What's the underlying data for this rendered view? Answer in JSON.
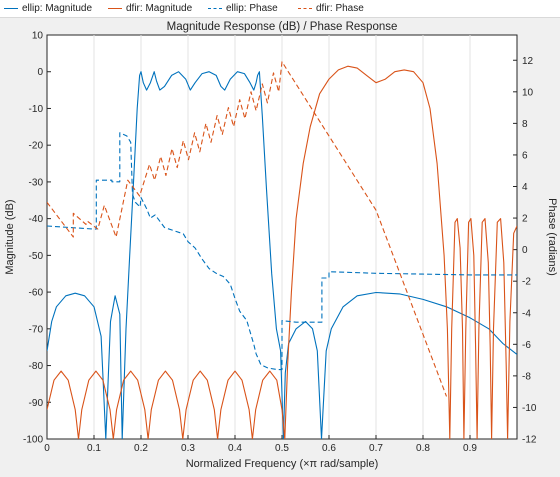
{
  "legend": [
    {
      "label": "ellip: Magnitude",
      "color": "#0072BD",
      "style": "solid"
    },
    {
      "label": "dfir: Magnitude",
      "color": "#D95319",
      "style": "solid"
    },
    {
      "label": "ellip: Phase",
      "color": "#0072BD",
      "style": "dashed"
    },
    {
      "label": "dfir: Phase",
      "color": "#D95319",
      "style": "dashed"
    }
  ],
  "chart_data": {
    "type": "line",
    "title": "Magnitude Response (dB) / Phase Response",
    "xlabel": "Normalized Frequency (×π rad/sample)",
    "ylabel_left": "Magnitude (dB)",
    "ylabel_right": "Phase (radians)",
    "xlim": [
      0,
      1
    ],
    "ylim_left": [
      -100,
      10
    ],
    "ylim_right": [
      -12,
      13.6
    ],
    "x_ticks": [
      "0",
      "0.1",
      "0.2",
      "0.3",
      "0.4",
      "0.5",
      "0.6",
      "0.7",
      "0.8",
      "0.9"
    ],
    "x_tick_values": [
      0,
      0.1,
      0.2,
      0.3,
      0.4,
      0.5,
      0.6,
      0.7,
      0.8,
      0.9
    ],
    "y_left_ticks": [
      "10",
      "0",
      "-10",
      "-20",
      "-30",
      "-40",
      "-50",
      "-60",
      "-70",
      "-80",
      "-90",
      "-100"
    ],
    "y_left_tick_values": [
      10,
      0,
      -10,
      -20,
      -30,
      -40,
      -50,
      -60,
      -70,
      -80,
      -90,
      -100
    ],
    "y_right_ticks": [
      "12",
      "10",
      "8",
      "6",
      "4",
      "2",
      "0",
      "-2",
      "-4",
      "-6",
      "-8",
      "-10",
      "-12"
    ],
    "y_right_tick_values": [
      12,
      10,
      8,
      6,
      4,
      2,
      0,
      -2,
      -4,
      -6,
      -8,
      -10,
      -12
    ],
    "grid": "vertical",
    "legend_position": "top",
    "series": [
      {
        "axis": "left",
        "color": "#0072BD",
        "style": "solid",
        "points": [
          [
            0,
            -76
          ],
          [
            0.01,
            -68
          ],
          [
            0.02,
            -64
          ],
          [
            0.04,
            -61
          ],
          [
            0.06,
            -60.3
          ],
          [
            0.08,
            -61
          ],
          [
            0.1,
            -64
          ],
          [
            0.115,
            -72
          ],
          [
            0.125,
            -100
          ],
          [
            0.135,
            -68
          ],
          [
            0.145,
            -61
          ],
          [
            0.155,
            -66
          ],
          [
            0.16,
            -100
          ],
          [
            0.168,
            -70
          ],
          [
            0.176,
            -50
          ],
          [
            0.185,
            -28
          ],
          [
            0.192,
            -10
          ],
          [
            0.197,
            -1
          ],
          [
            0.2,
            0
          ],
          [
            0.205,
            -3
          ],
          [
            0.212,
            -5
          ],
          [
            0.22,
            -3
          ],
          [
            0.228,
            0
          ],
          [
            0.233,
            -2.5
          ],
          [
            0.24,
            -5
          ],
          [
            0.25,
            -4
          ],
          [
            0.265,
            -1
          ],
          [
            0.28,
            0
          ],
          [
            0.295,
            -2
          ],
          [
            0.305,
            -5
          ],
          [
            0.315,
            -3
          ],
          [
            0.33,
            -0.5
          ],
          [
            0.345,
            0
          ],
          [
            0.36,
            -1
          ],
          [
            0.37,
            -4
          ],
          [
            0.378,
            -5
          ],
          [
            0.39,
            -2
          ],
          [
            0.405,
            0
          ],
          [
            0.42,
            -0.5
          ],
          [
            0.432,
            -3
          ],
          [
            0.44,
            -5
          ],
          [
            0.445,
            -3
          ],
          [
            0.448,
            -1
          ],
          [
            0.452,
            0
          ],
          [
            0.458,
            -12
          ],
          [
            0.467,
            -32
          ],
          [
            0.478,
            -55
          ],
          [
            0.488,
            -70
          ],
          [
            0.497,
            -76
          ],
          [
            0.503,
            -100
          ],
          [
            0.507,
            -82
          ],
          [
            0.514,
            -74
          ],
          [
            0.53,
            -70
          ],
          [
            0.55,
            -68
          ],
          [
            0.565,
            -70
          ],
          [
            0.575,
            -76
          ],
          [
            0.584,
            -100
          ],
          [
            0.594,
            -76
          ],
          [
            0.605,
            -70
          ],
          [
            0.63,
            -64
          ],
          [
            0.66,
            -61
          ],
          [
            0.7,
            -60.1
          ],
          [
            0.75,
            -60.5
          ],
          [
            0.8,
            -62
          ],
          [
            0.85,
            -64
          ],
          [
            0.9,
            -67
          ],
          [
            0.94,
            -70
          ],
          [
            0.97,
            -74
          ],
          [
            1.0,
            -77
          ]
        ]
      },
      {
        "axis": "left",
        "color": "#D95319",
        "style": "solid",
        "points": [
          [
            0,
            -92
          ],
          [
            0.015,
            -84
          ],
          [
            0.03,
            -81.5
          ],
          [
            0.045,
            -84
          ],
          [
            0.06,
            -92
          ],
          [
            0.067,
            -100
          ],
          [
            0.074,
            -92
          ],
          [
            0.089,
            -84
          ],
          [
            0.104,
            -81.5
          ],
          [
            0.119,
            -84
          ],
          [
            0.134,
            -92
          ],
          [
            0.141,
            -100
          ],
          [
            0.148,
            -92
          ],
          [
            0.163,
            -84
          ],
          [
            0.178,
            -81.5
          ],
          [
            0.193,
            -84
          ],
          [
            0.208,
            -92
          ],
          [
            0.215,
            -100
          ],
          [
            0.222,
            -92
          ],
          [
            0.237,
            -84
          ],
          [
            0.252,
            -81.5
          ],
          [
            0.267,
            -84
          ],
          [
            0.282,
            -92
          ],
          [
            0.289,
            -100
          ],
          [
            0.296,
            -92
          ],
          [
            0.311,
            -84
          ],
          [
            0.326,
            -81.5
          ],
          [
            0.341,
            -84
          ],
          [
            0.356,
            -92
          ],
          [
            0.363,
            -100
          ],
          [
            0.37,
            -92
          ],
          [
            0.385,
            -84
          ],
          [
            0.4,
            -81.5
          ],
          [
            0.415,
            -84
          ],
          [
            0.43,
            -92
          ],
          [
            0.437,
            -100
          ],
          [
            0.444,
            -92
          ],
          [
            0.459,
            -84
          ],
          [
            0.474,
            -81.5
          ],
          [
            0.489,
            -84
          ],
          [
            0.5,
            -92
          ],
          [
            0.506,
            -100
          ],
          [
            0.512,
            -80
          ],
          [
            0.52,
            -60
          ],
          [
            0.53,
            -40
          ],
          [
            0.545,
            -25
          ],
          [
            0.56,
            -15
          ],
          [
            0.58,
            -6
          ],
          [
            0.6,
            -2
          ],
          [
            0.62,
            0.5
          ],
          [
            0.64,
            1.5
          ],
          [
            0.66,
            1
          ],
          [
            0.68,
            -1
          ],
          [
            0.7,
            -3
          ],
          [
            0.72,
            -2
          ],
          [
            0.74,
            0
          ],
          [
            0.76,
            0.5
          ],
          [
            0.78,
            0
          ],
          [
            0.8,
            -3
          ],
          [
            0.815,
            -10
          ],
          [
            0.83,
            -25
          ],
          [
            0.845,
            -50
          ],
          [
            0.852,
            -70
          ],
          [
            0.857,
            -100
          ],
          [
            0.861,
            -70
          ],
          [
            0.868,
            -41
          ],
          [
            0.873,
            -40
          ],
          [
            0.879,
            -48
          ],
          [
            0.884,
            -70
          ],
          [
            0.887,
            -100
          ],
          [
            0.891,
            -70
          ],
          [
            0.897,
            -41
          ],
          [
            0.902,
            -40
          ],
          [
            0.908,
            -50
          ],
          [
            0.912,
            -75
          ],
          [
            0.915,
            -100
          ],
          [
            0.919,
            -70
          ],
          [
            0.926,
            -41
          ],
          [
            0.932,
            -40
          ],
          [
            0.939,
            -52
          ],
          [
            0.943,
            -75
          ],
          [
            0.946,
            -100
          ],
          [
            0.95,
            -70
          ],
          [
            0.958,
            -41
          ],
          [
            0.965,
            -40
          ],
          [
            0.972,
            -52
          ],
          [
            0.977,
            -80
          ],
          [
            0.98,
            -100
          ],
          [
            0.985,
            -68
          ],
          [
            0.993,
            -44
          ],
          [
            1.0,
            -42
          ]
        ]
      },
      {
        "axis": "right",
        "color": "#0072BD",
        "style": "dashed",
        "points": [
          [
            0,
            1.5
          ],
          [
            0.1,
            1.3
          ],
          [
            0.105,
            1.3
          ],
          [
            0.105,
            4.4
          ],
          [
            0.138,
            4.4
          ],
          [
            0.138,
            4.3
          ],
          [
            0.155,
            4.3
          ],
          [
            0.155,
            7.4
          ],
          [
            0.17,
            7.2
          ],
          [
            0.178,
            6.8
          ],
          [
            0.182,
            3.5
          ],
          [
            0.188,
            3.0
          ],
          [
            0.198,
            2.7
          ],
          [
            0.2,
            3.3
          ],
          [
            0.212,
            2.6
          ],
          [
            0.22,
            2.0
          ],
          [
            0.23,
            2.2
          ],
          [
            0.25,
            1.4
          ],
          [
            0.27,
            1.2
          ],
          [
            0.29,
            1.0
          ],
          [
            0.3,
            0.5
          ],
          [
            0.315,
            0.1
          ],
          [
            0.33,
            -0.6
          ],
          [
            0.345,
            -1.2
          ],
          [
            0.36,
            -1.5
          ],
          [
            0.375,
            -1.7
          ],
          [
            0.39,
            -2.2
          ],
          [
            0.4,
            -3.1
          ],
          [
            0.41,
            -3.9
          ],
          [
            0.425,
            -4.5
          ],
          [
            0.43,
            -5.0
          ],
          [
            0.44,
            -6.0
          ],
          [
            0.445,
            -6.6
          ],
          [
            0.455,
            -7.3
          ],
          [
            0.47,
            -7.5
          ],
          [
            0.49,
            -7.6
          ],
          [
            0.5,
            -7.6
          ],
          [
            0.5,
            -4.5
          ],
          [
            0.53,
            -4.6
          ],
          [
            0.56,
            -4.6
          ],
          [
            0.585,
            -4.6
          ],
          [
            0.585,
            -1.8
          ],
          [
            0.6,
            -1.8
          ],
          [
            0.6,
            -1.4
          ],
          [
            0.7,
            -1.5
          ],
          [
            0.8,
            -1.55
          ],
          [
            0.9,
            -1.6
          ],
          [
            1.0,
            -1.6
          ]
        ]
      },
      {
        "axis": "right",
        "color": "#D95319",
        "style": "dashed",
        "points": [
          [
            0,
            3
          ],
          [
            0.056,
            0.8
          ],
          [
            0.056,
            2.3
          ],
          [
            0.083,
            1.6
          ],
          [
            0.086,
            1.8
          ],
          [
            0.108,
            1.3
          ],
          [
            0.122,
            2.8
          ],
          [
            0.147,
            0.8
          ],
          [
            0.172,
            4.4
          ],
          [
            0.197,
            3.4
          ],
          [
            0.218,
            5.4
          ],
          [
            0.229,
            4.4
          ],
          [
            0.242,
            5.9
          ],
          [
            0.253,
            4.7
          ],
          [
            0.266,
            6.4
          ],
          [
            0.277,
            5.2
          ],
          [
            0.29,
            6.9
          ],
          [
            0.301,
            5.7
          ],
          [
            0.314,
            7.4
          ],
          [
            0.325,
            6.2
          ],
          [
            0.338,
            8.0
          ],
          [
            0.349,
            6.8
          ],
          [
            0.362,
            8.5
          ],
          [
            0.373,
            7.3
          ],
          [
            0.386,
            9.0
          ],
          [
            0.397,
            7.8
          ],
          [
            0.41,
            9.5
          ],
          [
            0.421,
            8.3
          ],
          [
            0.434,
            10.0
          ],
          [
            0.445,
            8.8
          ],
          [
            0.458,
            10.5
          ],
          [
            0.469,
            9.3
          ],
          [
            0.482,
            11.2
          ],
          [
            0.493,
            10.0
          ],
          [
            0.5,
            11.9
          ],
          [
            0.7,
            2.5
          ],
          [
            0.85,
            -9.3
          ]
        ]
      }
    ]
  }
}
